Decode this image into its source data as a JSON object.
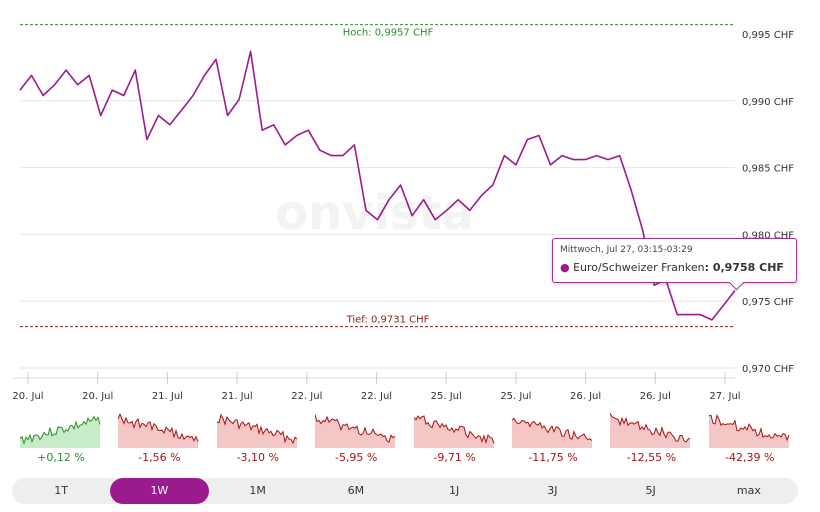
{
  "watermark": "onvista",
  "chart_data": {
    "type": "line",
    "series": [
      {
        "name": "Euro/Schweizer Franken",
        "color": "#9b1b8e",
        "values": [
          0.9908,
          0.9919,
          0.9904,
          0.9912,
          0.9923,
          0.9912,
          0.9919,
          0.9889,
          0.9908,
          0.9904,
          0.9923,
          0.9871,
          0.9889,
          0.9882,
          0.9893,
          0.9904,
          0.9919,
          0.9931,
          0.9889,
          0.9901,
          0.9937,
          0.9878,
          0.9882,
          0.9867,
          0.9874,
          0.9878,
          0.9863,
          0.9859,
          0.9859,
          0.9867,
          0.9818,
          0.9811,
          0.9826,
          0.9837,
          0.9814,
          0.9826,
          0.9811,
          0.9818,
          0.9826,
          0.9818,
          0.9829,
          0.9837,
          0.9859,
          0.9852,
          0.9871,
          0.9874,
          0.9852,
          0.9859,
          0.9856,
          0.9856,
          0.9859,
          0.9856,
          0.9859,
          0.9833,
          0.9803,
          0.9762,
          0.9766,
          0.974,
          0.974,
          0.974,
          0.9736,
          0.9747,
          0.9758
        ]
      }
    ],
    "x_tick_labels": [
      "20. Jul",
      "20. Jul",
      "21. Jul",
      "21. Jul",
      "22. Jul",
      "22. Jul",
      "25. Jul",
      "25. Jul",
      "26. Jul",
      "26. Jul",
      "27. Jul"
    ],
    "y_ticks": [
      0.995,
      0.99,
      0.985,
      0.98,
      0.975,
      0.97
    ],
    "y_tick_labels": [
      "0,995 CHF",
      "0,990 CHF",
      "0,985 CHF",
      "0,980 CHF",
      "0,975 CHF",
      "0,970 CHF"
    ],
    "ylim": [
      0.97,
      0.995
    ],
    "grid": true,
    "high": {
      "value": 0.9957,
      "label": "Hoch: 0,9957 CHF",
      "color": "#2e8b2e"
    },
    "low": {
      "value": 0.9731,
      "label": "Tief: 0,9731 CHF",
      "color": "#8b1a1a"
    }
  },
  "tooltip": {
    "date": "Mittwoch, Jul 27, 03:15-03:29",
    "series": "Euro/Schweizer Franken",
    "value": ": 0,9758 CHF"
  },
  "sparklines": [
    {
      "change": "+0,12 %",
      "trend": "up"
    },
    {
      "change": "-1,56 %",
      "trend": "down"
    },
    {
      "change": "-3,10 %",
      "trend": "down"
    },
    {
      "change": "-5,95 %",
      "trend": "down"
    },
    {
      "change": "-9,71 %",
      "trend": "down"
    },
    {
      "change": "-11,75 %",
      "trend": "down"
    },
    {
      "change": "-12,55 %",
      "trend": "down"
    },
    {
      "change": "-42,39 %",
      "trend": "down"
    }
  ],
  "colors": {
    "up": "#2e8b2e",
    "down": "#a31515",
    "up_fill": "#c8ecc8",
    "down_fill": "#f4c6c6",
    "accent": "#9b1b8e"
  },
  "ranges": [
    {
      "label": "1T"
    },
    {
      "label": "1W",
      "active": true
    },
    {
      "label": "1M"
    },
    {
      "label": "6M"
    },
    {
      "label": "1J"
    },
    {
      "label": "3J"
    },
    {
      "label": "5J"
    },
    {
      "label": "max"
    }
  ]
}
